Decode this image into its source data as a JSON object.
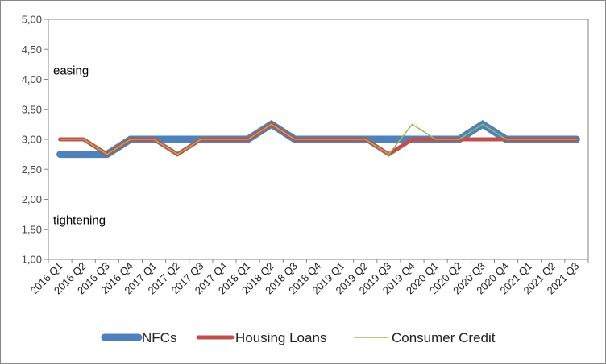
{
  "chart_data": {
    "type": "line",
    "categories": [
      "2016 Q1",
      "2016 Q2",
      "2016 Q3",
      "2016 Q4",
      "2017 Q1",
      "2017 Q2",
      "2017 Q3",
      "2017 Q4",
      "2018 Q1",
      "2018 Q2",
      "2018 Q3",
      "2018 Q4",
      "2019 Q1",
      "2019 Q2",
      "2019 Q3",
      "2019 Q4",
      "2020 Q1",
      "2020 Q2",
      "2020 Q3",
      "2020 Q4",
      "2021 Q1",
      "2021 Q2",
      "2021 Q3"
    ],
    "yticks": [
      "1,00",
      "1,50",
      "2,00",
      "2,50",
      "3,00",
      "3,50",
      "4,00",
      "4,50",
      "5,00"
    ],
    "ylim": [
      1,
      5
    ],
    "grid": false,
    "legend_position": "bottom",
    "annotations": [
      {
        "text": "easing",
        "y": 4.15
      },
      {
        "text": "tightening",
        "y": 1.65
      }
    ],
    "series": [
      {
        "name": "NFCs",
        "color": "#4F81BD",
        "width": 9,
        "values": [
          2.75,
          2.75,
          2.75,
          3.0,
          3.0,
          3.0,
          3.0,
          3.0,
          3.0,
          3.25,
          3.0,
          3.0,
          3.0,
          3.0,
          3.0,
          3.0,
          3.0,
          3.0,
          3.25,
          3.0,
          3.0,
          3.0,
          3.0
        ]
      },
      {
        "name": "Housing Loans",
        "color": "#C0504D",
        "width": 5,
        "values": [
          3.0,
          3.0,
          2.75,
          3.0,
          3.0,
          2.75,
          3.0,
          3.0,
          3.0,
          3.25,
          3.0,
          3.0,
          3.0,
          3.0,
          2.75,
          3.0,
          3.0,
          3.0,
          3.0,
          3.0,
          3.0,
          3.0,
          3.0
        ]
      },
      {
        "name": "Consumer Credit",
        "color": "#9BBB59",
        "width": 1.5,
        "values": [
          3.0,
          3.0,
          2.75,
          3.0,
          3.0,
          2.75,
          3.0,
          3.0,
          3.0,
          3.25,
          3.0,
          3.0,
          3.0,
          3.0,
          2.75,
          3.25,
          3.0,
          3.0,
          3.25,
          3.0,
          3.0,
          3.0,
          3.0
        ]
      }
    ]
  }
}
